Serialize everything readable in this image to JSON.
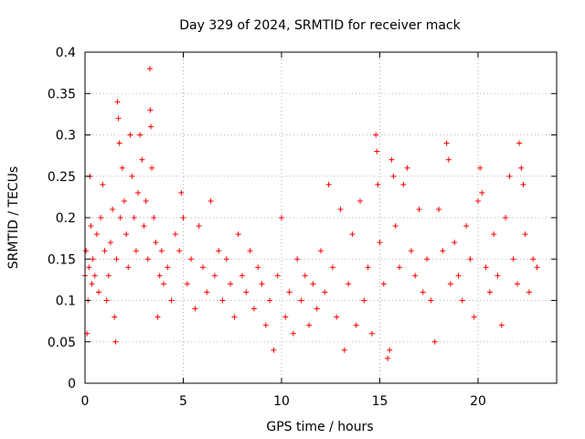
{
  "chart_data": {
    "type": "scatter",
    "title": "Day 329 of 2024, SRMTID for receiver mack",
    "xlabel": "GPS time / hours",
    "ylabel": "SRMTID / TECUs",
    "xlim": [
      0,
      24
    ],
    "ylim": [
      0,
      0.4
    ],
    "xticks": [
      0,
      5,
      10,
      15,
      20
    ],
    "xtick_labels": [
      "0",
      "5",
      "10",
      "15",
      "20"
    ],
    "yticks": [
      0,
      0.05,
      0.1,
      0.15,
      0.2,
      0.25,
      0.3,
      0.35,
      0.4
    ],
    "ytick_labels": [
      "0",
      "0.05",
      "0.1",
      "0.15",
      "0.2",
      "0.25",
      "0.3",
      "0.35",
      "0.4"
    ],
    "grid": true,
    "marker": "plus",
    "marker_color": "#ff0000",
    "series": [
      {
        "name": "SRMTID",
        "points": [
          [
            0.0,
            0.13
          ],
          [
            0.05,
            0.16
          ],
          [
            0.1,
            0.06
          ],
          [
            0.15,
            0.1
          ],
          [
            0.2,
            0.14
          ],
          [
            0.25,
            0.25
          ],
          [
            0.3,
            0.19
          ],
          [
            0.35,
            0.12
          ],
          [
            0.4,
            0.15
          ],
          [
            0.5,
            0.13
          ],
          [
            0.6,
            0.18
          ],
          [
            0.7,
            0.11
          ],
          [
            0.8,
            0.2
          ],
          [
            0.9,
            0.24
          ],
          [
            1.0,
            0.16
          ],
          [
            1.1,
            0.1
          ],
          [
            1.2,
            0.13
          ],
          [
            1.3,
            0.17
          ],
          [
            1.4,
            0.21
          ],
          [
            1.5,
            0.08
          ],
          [
            1.55,
            0.05
          ],
          [
            1.6,
            0.15
          ],
          [
            1.65,
            0.34
          ],
          [
            1.7,
            0.32
          ],
          [
            1.75,
            0.29
          ],
          [
            1.8,
            0.2
          ],
          [
            1.9,
            0.26
          ],
          [
            2.0,
            0.22
          ],
          [
            2.1,
            0.18
          ],
          [
            2.2,
            0.14
          ],
          [
            2.3,
            0.3
          ],
          [
            2.4,
            0.25
          ],
          [
            2.5,
            0.2
          ],
          [
            2.6,
            0.16
          ],
          [
            2.7,
            0.23
          ],
          [
            2.8,
            0.3
          ],
          [
            2.9,
            0.27
          ],
          [
            3.0,
            0.19
          ],
          [
            3.1,
            0.22
          ],
          [
            3.2,
            0.15
          ],
          [
            3.3,
            0.38
          ],
          [
            3.32,
            0.33
          ],
          [
            3.35,
            0.31
          ],
          [
            3.4,
            0.26
          ],
          [
            3.5,
            0.2
          ],
          [
            3.6,
            0.17
          ],
          [
            3.7,
            0.08
          ],
          [
            3.8,
            0.13
          ],
          [
            3.9,
            0.16
          ],
          [
            4.0,
            0.12
          ],
          [
            4.2,
            0.14
          ],
          [
            4.4,
            0.1
          ],
          [
            4.6,
            0.18
          ],
          [
            4.8,
            0.16
          ],
          [
            4.9,
            0.23
          ],
          [
            5.0,
            0.2
          ],
          [
            5.2,
            0.12
          ],
          [
            5.4,
            0.15
          ],
          [
            5.6,
            0.09
          ],
          [
            5.8,
            0.19
          ],
          [
            6.0,
            0.14
          ],
          [
            6.2,
            0.11
          ],
          [
            6.4,
            0.22
          ],
          [
            6.6,
            0.13
          ],
          [
            6.8,
            0.16
          ],
          [
            7.0,
            0.1
          ],
          [
            7.2,
            0.15
          ],
          [
            7.4,
            0.12
          ],
          [
            7.6,
            0.08
          ],
          [
            7.8,
            0.18
          ],
          [
            8.0,
            0.13
          ],
          [
            8.2,
            0.11
          ],
          [
            8.4,
            0.16
          ],
          [
            8.6,
            0.09
          ],
          [
            8.8,
            0.14
          ],
          [
            9.0,
            0.12
          ],
          [
            9.2,
            0.07
          ],
          [
            9.4,
            0.1
          ],
          [
            9.6,
            0.04
          ],
          [
            9.8,
            0.13
          ],
          [
            10.0,
            0.2
          ],
          [
            10.2,
            0.08
          ],
          [
            10.4,
            0.11
          ],
          [
            10.6,
            0.06
          ],
          [
            10.8,
            0.15
          ],
          [
            11.0,
            0.1
          ],
          [
            11.2,
            0.13
          ],
          [
            11.4,
            0.07
          ],
          [
            11.6,
            0.12
          ],
          [
            11.8,
            0.09
          ],
          [
            12.0,
            0.16
          ],
          [
            12.2,
            0.11
          ],
          [
            12.4,
            0.24
          ],
          [
            12.6,
            0.14
          ],
          [
            12.8,
            0.08
          ],
          [
            13.0,
            0.21
          ],
          [
            13.2,
            0.04
          ],
          [
            13.4,
            0.12
          ],
          [
            13.6,
            0.18
          ],
          [
            13.8,
            0.07
          ],
          [
            14.0,
            0.22
          ],
          [
            14.2,
            0.1
          ],
          [
            14.4,
            0.14
          ],
          [
            14.6,
            0.06
          ],
          [
            14.8,
            0.3
          ],
          [
            14.85,
            0.28
          ],
          [
            14.9,
            0.24
          ],
          [
            15.0,
            0.17
          ],
          [
            15.2,
            0.12
          ],
          [
            15.4,
            0.03
          ],
          [
            15.5,
            0.04
          ],
          [
            15.6,
            0.27
          ],
          [
            15.7,
            0.25
          ],
          [
            15.8,
            0.19
          ],
          [
            16.0,
            0.14
          ],
          [
            16.2,
            0.24
          ],
          [
            16.4,
            0.26
          ],
          [
            16.6,
            0.16
          ],
          [
            16.8,
            0.13
          ],
          [
            17.0,
            0.21
          ],
          [
            17.2,
            0.11
          ],
          [
            17.4,
            0.15
          ],
          [
            17.6,
            0.1
          ],
          [
            17.8,
            0.05
          ],
          [
            18.0,
            0.21
          ],
          [
            18.2,
            0.16
          ],
          [
            18.4,
            0.29
          ],
          [
            18.5,
            0.27
          ],
          [
            18.6,
            0.12
          ],
          [
            18.8,
            0.17
          ],
          [
            19.0,
            0.13
          ],
          [
            19.2,
            0.1
          ],
          [
            19.4,
            0.19
          ],
          [
            19.6,
            0.15
          ],
          [
            19.8,
            0.08
          ],
          [
            20.0,
            0.22
          ],
          [
            20.1,
            0.26
          ],
          [
            20.2,
            0.23
          ],
          [
            20.4,
            0.14
          ],
          [
            20.6,
            0.11
          ],
          [
            20.8,
            0.18
          ],
          [
            21.0,
            0.13
          ],
          [
            21.2,
            0.07
          ],
          [
            21.4,
            0.2
          ],
          [
            21.6,
            0.25
          ],
          [
            21.8,
            0.15
          ],
          [
            22.0,
            0.12
          ],
          [
            22.1,
            0.29
          ],
          [
            22.2,
            0.26
          ],
          [
            22.3,
            0.24
          ],
          [
            22.4,
            0.18
          ],
          [
            22.6,
            0.11
          ],
          [
            22.8,
            0.15
          ],
          [
            23.0,
            0.14
          ]
        ]
      }
    ]
  }
}
